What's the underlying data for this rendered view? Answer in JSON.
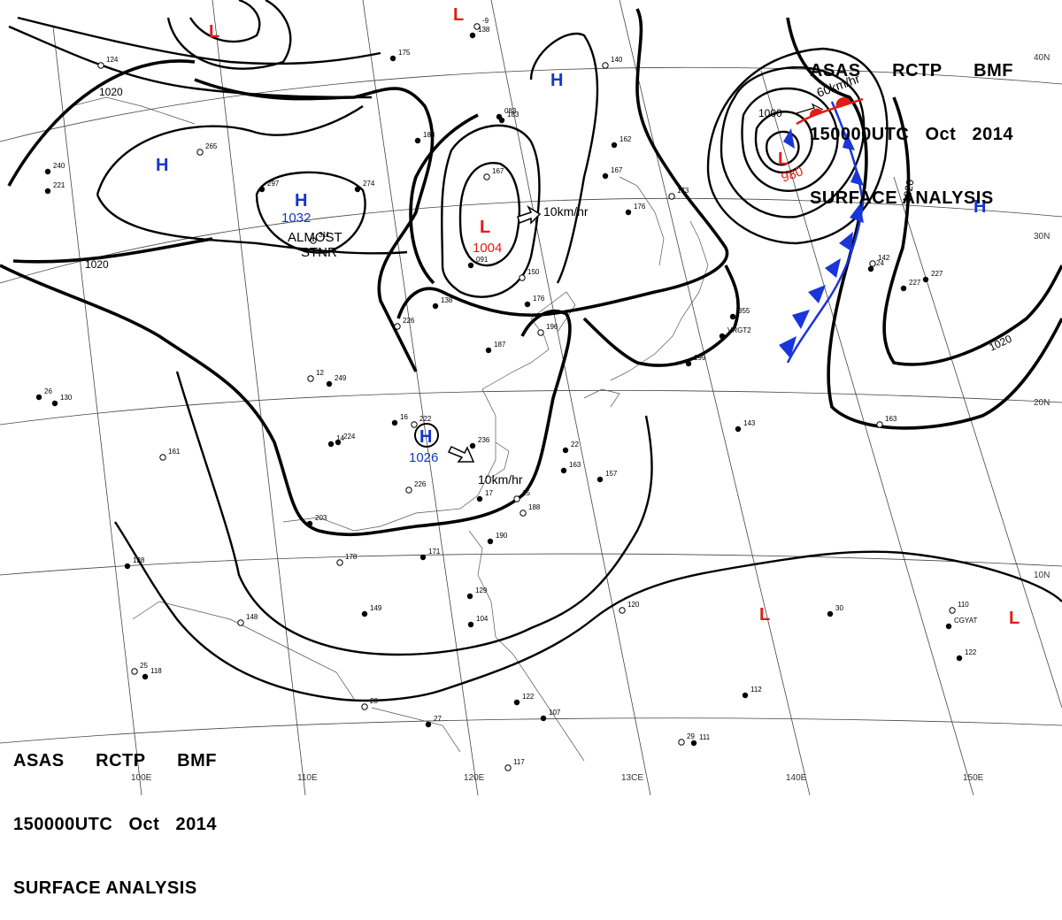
{
  "header": {
    "line1": [
      "ASAS",
      "RCTP",
      "BMF"
    ],
    "line2": [
      "150000UTC",
      "Oct",
      "2014"
    ],
    "line3": "SURFACE ANALYSIS"
  },
  "colors": {
    "low": "#e41b17",
    "high": "#1536c9",
    "front_cold": "#1a35d8",
    "front_warm": "#e41b17"
  },
  "grid_labels": {
    "longitudes": [
      "100E",
      "110E",
      "120E",
      "13CE",
      "140E",
      "150E"
    ],
    "latitudes": [
      "40N",
      "30N",
      "20N",
      "10N"
    ]
  },
  "isobar_labels": [
    "1020",
    "1020",
    "1020",
    "1020",
    "1000"
  ],
  "systems": {
    "highs": [
      {
        "symbol": "H",
        "label": ""
      },
      {
        "symbol": "H",
        "label": "1032",
        "note1": "ALMOST",
        "note2": "STNR"
      },
      {
        "symbol": "H",
        "label": ""
      },
      {
        "symbol": "H",
        "label": "1026",
        "motion": "10km/hr"
      },
      {
        "symbol": "H",
        "label": ""
      }
    ],
    "lows": [
      {
        "symbol": "L",
        "label": ""
      },
      {
        "symbol": "L",
        "label": ""
      },
      {
        "symbol": "L",
        "label": "1004",
        "motion": "10km/hr"
      },
      {
        "symbol": "L",
        "label": "980",
        "motion": "60km/hr"
      },
      {
        "symbol": "L",
        "label": ""
      },
      {
        "symbol": "L",
        "label": ""
      }
    ]
  },
  "station_obs": [
    "124",
    "240",
    "221",
    "265",
    "297",
    "274",
    "311",
    "175",
    "138",
    "-9",
    "183",
    "188",
    "167",
    "083",
    "091",
    "140",
    "162",
    "167",
    "173",
    "176",
    "227",
    "150",
    "176",
    "138",
    "226",
    "249",
    "187",
    "196",
    "355",
    "199",
    "222",
    "224",
    "236",
    "226",
    "163",
    "157",
    "188",
    "190",
    "203",
    "178",
    "171",
    "149",
    "148",
    "129",
    "104",
    "120",
    "122",
    "107",
    "117",
    "111",
    "112",
    "110",
    "122",
    "130",
    "161",
    "128",
    "118",
    "163",
    "143",
    "227",
    "142",
    "VRGT2",
    "CGYAT",
    "29",
    "30",
    "26",
    "28",
    "22",
    "24",
    "25",
    "27",
    "17",
    "15",
    "16",
    "14",
    "12"
  ]
}
